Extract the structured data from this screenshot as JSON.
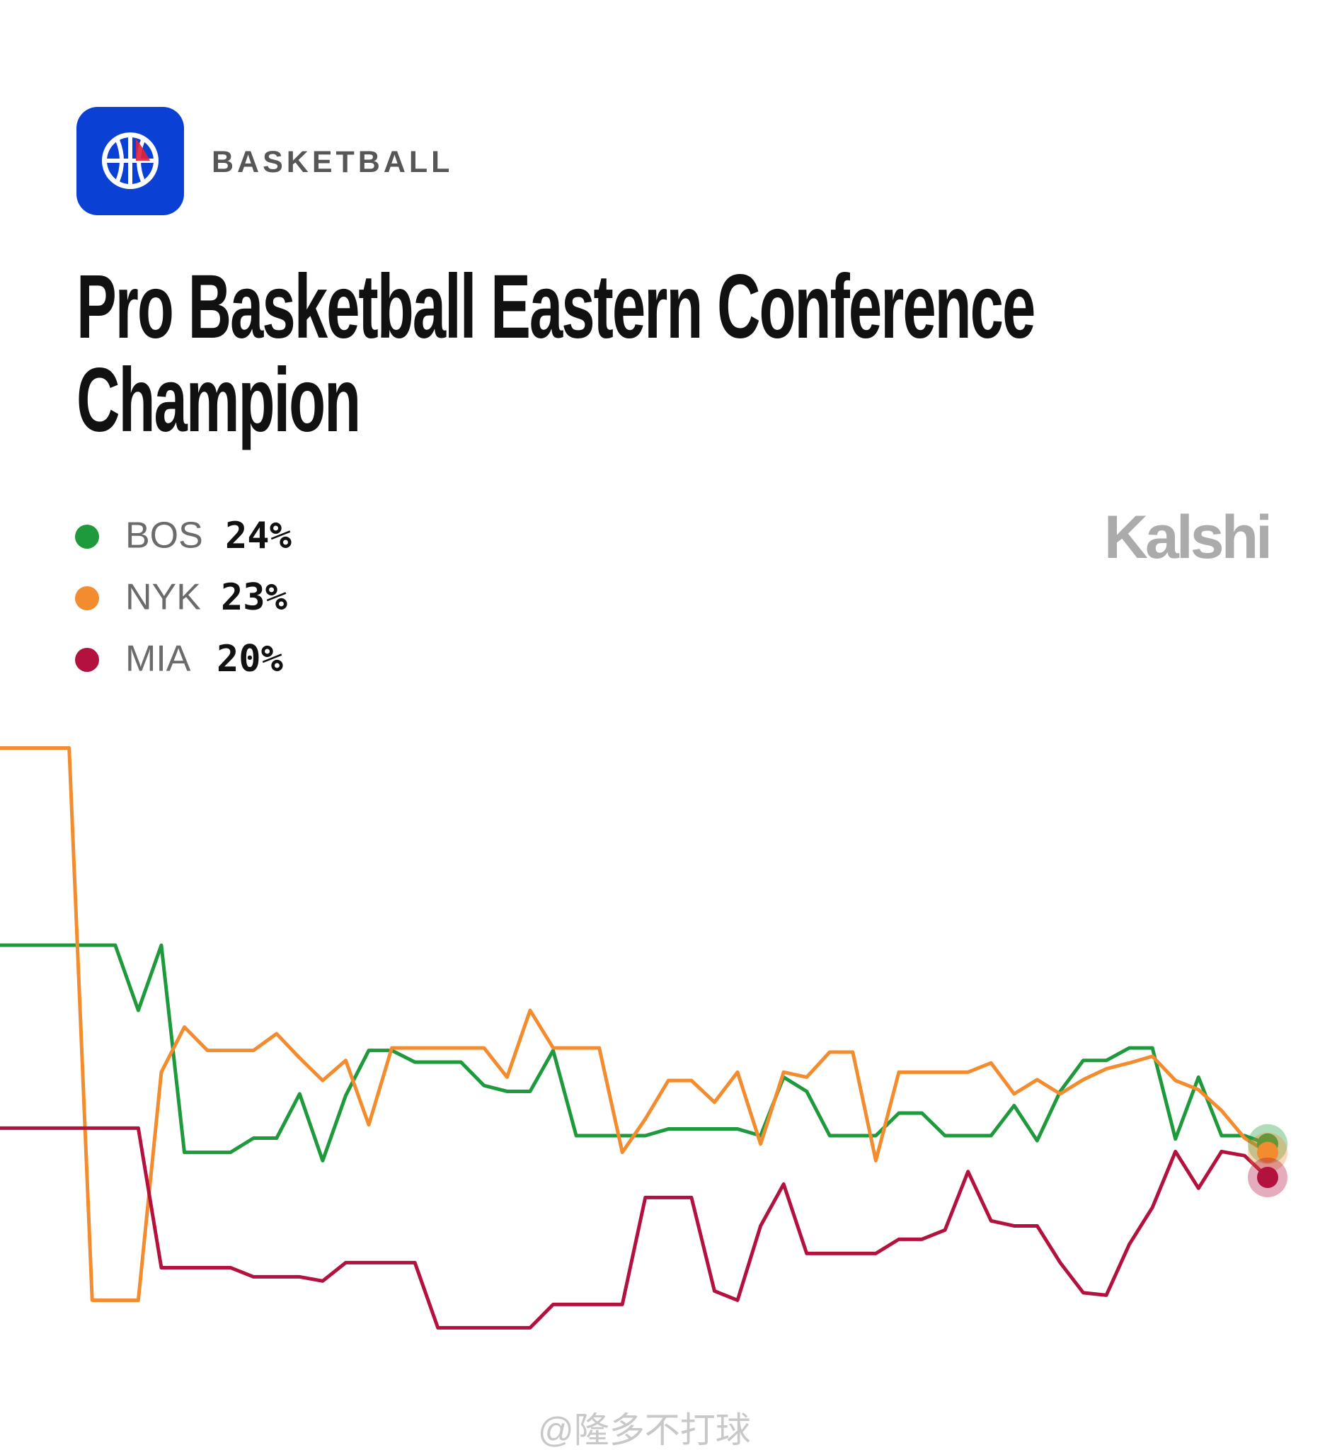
{
  "header": {
    "category": "BASKETBALL",
    "brand": "Kalshi",
    "watermark": "@隆多不打球"
  },
  "chart_data": {
    "type": "line",
    "title": "Pro Basketball Eastern Conference Champion",
    "ylim": [
      0,
      75
    ],
    "series": [
      {
        "name": "BOS",
        "label": "24%",
        "color": "#1e9a3c",
        "values": [
          47.8,
          47.8,
          47.8,
          47.8,
          47.8,
          47.8,
          40,
          47.8,
          23,
          23,
          23,
          24.7,
          24.7,
          30,
          22,
          29.8,
          35.2,
          35.2,
          33.8,
          33.8,
          33.8,
          31,
          30.3,
          30.3,
          35.2,
          25,
          25,
          25,
          25,
          25.8,
          25.8,
          25.8,
          25.8,
          25,
          32,
          30.3,
          25,
          25,
          25,
          27.7,
          27.7,
          25,
          25,
          25,
          28.6,
          24.4,
          30.3,
          34,
          34,
          35.5,
          35.5,
          24.6,
          32,
          25,
          25,
          24
        ]
      },
      {
        "name": "NYK",
        "label": "23%",
        "color": "#f28c2e",
        "values": [
          71.4,
          71.4,
          71.4,
          71.4,
          5.3,
          5.3,
          5.3,
          32.6,
          38,
          35.2,
          35.2,
          35.2,
          37.2,
          34.3,
          31.6,
          34,
          26.3,
          35.5,
          35.5,
          35.5,
          35.5,
          35.5,
          32,
          40,
          35.5,
          35.5,
          35.5,
          23,
          27,
          31.6,
          31.6,
          29,
          32.6,
          24,
          32.6,
          32,
          35,
          35,
          22,
          32.6,
          32.6,
          32.6,
          32.6,
          33.7,
          30,
          31.7,
          30,
          31.7,
          33,
          33.7,
          34.5,
          31.6,
          30.5,
          28,
          24.7,
          23
        ]
      },
      {
        "name": "MIA",
        "label": "20%",
        "color": "#b3123f",
        "values": [
          25.9,
          25.9,
          25.9,
          25.9,
          25.9,
          25.9,
          25.9,
          9.2,
          9.2,
          9.2,
          9.2,
          8.1,
          8.1,
          8.1,
          7.6,
          9.8,
          9.8,
          9.8,
          9.8,
          2,
          2,
          2,
          2,
          2,
          4.8,
          4.8,
          4.8,
          4.8,
          17.6,
          17.6,
          17.6,
          6.4,
          5.3,
          14.2,
          19.2,
          10.9,
          10.9,
          10.9,
          10.9,
          12.6,
          12.6,
          13.7,
          20.7,
          14.8,
          14.2,
          14.2,
          9.8,
          6.2,
          5.9,
          12,
          16.4,
          23.1,
          18.7,
          23.1,
          22.6,
          20
        ]
      }
    ]
  }
}
